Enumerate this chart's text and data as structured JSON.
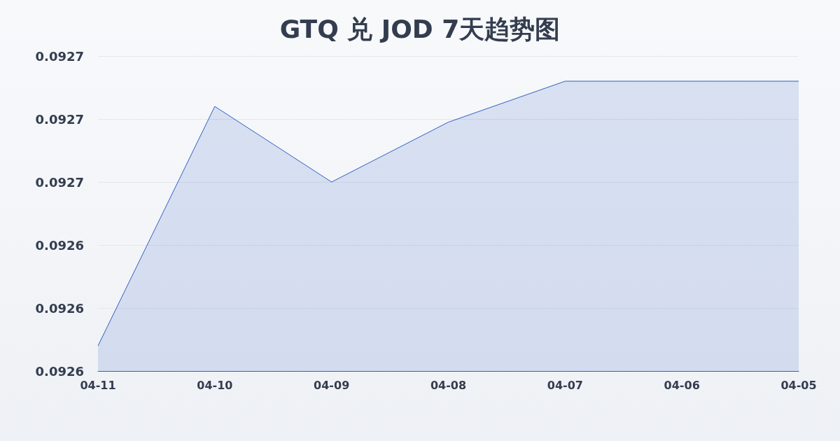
{
  "chart_data": {
    "type": "area",
    "title": "GTQ 兑 JOD 7天趋势图",
    "categories": [
      "04-11",
      "04-10",
      "04-09",
      "04-08",
      "04-07",
      "04-06",
      "04-05"
    ],
    "series": [
      {
        "color": "#2f5fc4",
        "values": [
          0.092608,
          0.092684,
          0.09266,
          0.092679,
          0.092692,
          0.092692,
          0.092692
        ]
      }
    ],
    "ylim": [
      0.0926,
      0.0927
    ],
    "yticks": [
      {
        "value": 0.0926,
        "label": "0.0926"
      },
      {
        "value": 0.09262,
        "label": "0.0926"
      },
      {
        "value": 0.09264,
        "label": "0.0926"
      },
      {
        "value": 0.09266,
        "label": "0.0927"
      },
      {
        "value": 0.09268,
        "label": "0.0927"
      },
      {
        "value": 0.0927,
        "label": "0.0927"
      }
    ],
    "grid": "y",
    "marker": "none",
    "line_style": "solid"
  }
}
